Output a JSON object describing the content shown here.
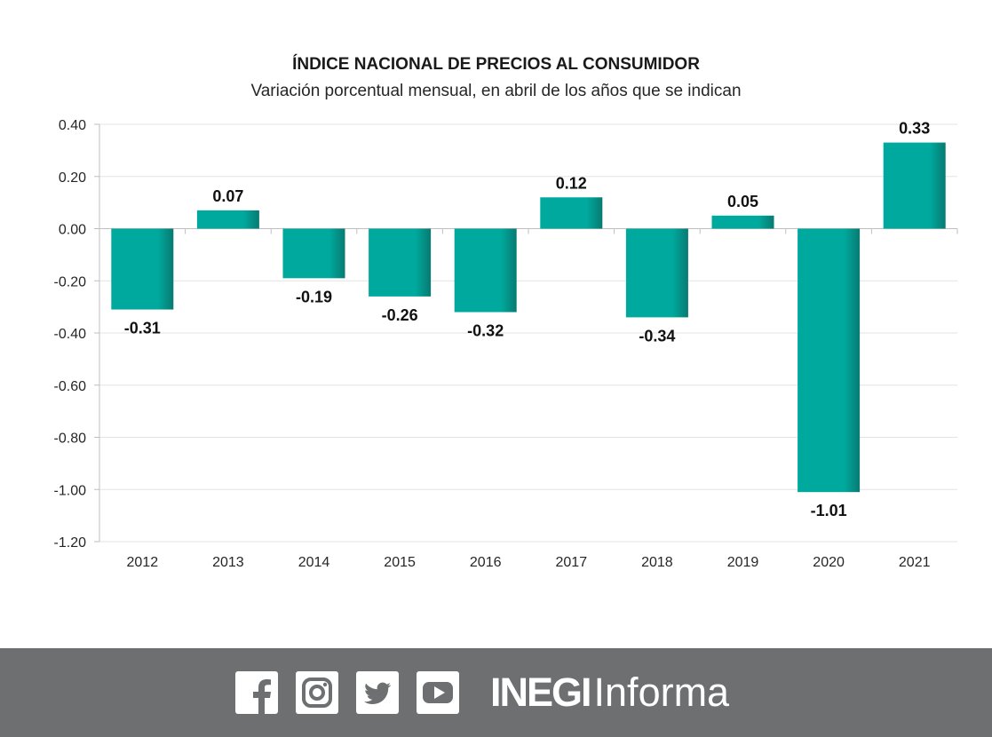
{
  "chart_data": {
    "type": "bar",
    "title": "ÍNDICE NACIONAL DE PRECIOS AL CONSUMIDOR",
    "subtitle": "Variación porcentual mensual, en abril de los años que se indican",
    "categories": [
      "2012",
      "2013",
      "2014",
      "2015",
      "2016",
      "2017",
      "2018",
      "2019",
      "2020",
      "2021"
    ],
    "values": [
      -0.31,
      0.07,
      -0.19,
      -0.26,
      -0.32,
      0.12,
      -0.34,
      0.05,
      -1.01,
      0.33
    ],
    "data_labels": [
      "-0.31",
      "0.07",
      "-0.19",
      "-0.26",
      "-0.32",
      "0.12",
      "-0.34",
      "0.05",
      "-1.01",
      "0.33"
    ],
    "y_ticks": [
      0.4,
      0.2,
      0.0,
      -0.2,
      -0.4,
      -0.6,
      -0.8,
      -1.0,
      -1.2
    ],
    "y_tick_labels": [
      "0.40",
      "0.20",
      "0.00",
      "-0.20",
      "-0.40",
      "-0.60",
      "-0.80",
      "-1.00",
      "-1.20"
    ],
    "ylim": [
      -1.2,
      0.4
    ],
    "grid": true,
    "legend": "none",
    "bar_color": "#00a99d"
  },
  "footer": {
    "background": "#6d6f70",
    "icons": [
      "facebook-icon",
      "instagram-icon",
      "twitter-icon",
      "youtube-icon"
    ],
    "brand_bold": "INEGI",
    "brand_light": "Informa"
  }
}
